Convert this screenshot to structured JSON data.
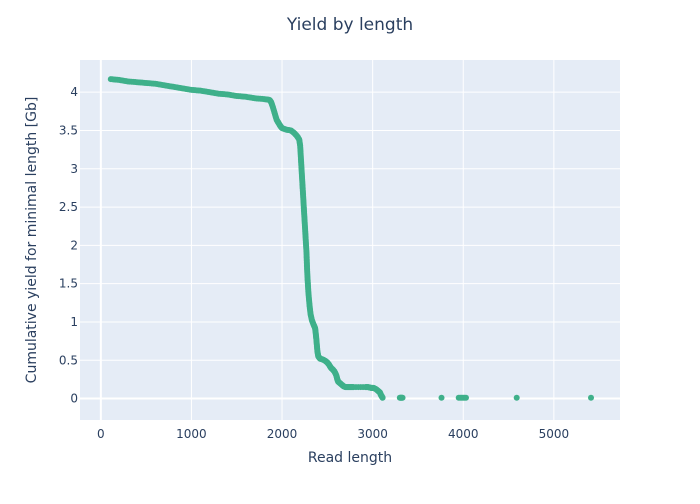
{
  "chart_data": {
    "type": "scatter",
    "title": "Yield by length",
    "xlabel": "Read length",
    "ylabel": "Cumulative yield for minimal length [Gb]",
    "xlim": [
      -230,
      5730
    ],
    "ylim": [
      -0.28,
      4.42
    ],
    "xticks": [
      0,
      1000,
      2000,
      3000,
      4000,
      5000
    ],
    "xtick_labels": [
      "0",
      "1000",
      "2000",
      "3000",
      "4000",
      "5000"
    ],
    "yticks": [
      0,
      0.5,
      1,
      1.5,
      2,
      2.5,
      3,
      3.5,
      4
    ],
    "ytick_labels": [
      "0",
      "0.5",
      "1",
      "1.5",
      "2",
      "2.5",
      "3",
      "3.5",
      "4"
    ],
    "grid": true,
    "legend": "none",
    "marker_color": "#3fb08a",
    "plot_bg": "#e5ecf6",
    "series": [
      {
        "values_xy": [
          [
            110,
            4.17
          ],
          [
            200,
            4.16
          ],
          [
            300,
            4.14
          ],
          [
            400,
            4.13
          ],
          [
            500,
            4.12
          ],
          [
            600,
            4.11
          ],
          [
            700,
            4.09
          ],
          [
            800,
            4.07
          ],
          [
            900,
            4.05
          ],
          [
            1000,
            4.03
          ],
          [
            1100,
            4.02
          ],
          [
            1200,
            4.0
          ],
          [
            1300,
            3.98
          ],
          [
            1400,
            3.97
          ],
          [
            1500,
            3.95
          ],
          [
            1600,
            3.94
          ],
          [
            1700,
            3.92
          ],
          [
            1800,
            3.91
          ],
          [
            1860,
            3.9
          ],
          [
            1880,
            3.87
          ],
          [
            1900,
            3.8
          ],
          [
            1920,
            3.72
          ],
          [
            1940,
            3.64
          ],
          [
            1960,
            3.6
          ],
          [
            1980,
            3.56
          ],
          [
            2000,
            3.53
          ],
          [
            2050,
            3.51
          ],
          [
            2100,
            3.5
          ],
          [
            2140,
            3.46
          ],
          [
            2170,
            3.42
          ],
          [
            2190,
            3.38
          ],
          [
            2200,
            3.3
          ],
          [
            2205,
            3.2
          ],
          [
            2210,
            3.1
          ],
          [
            2215,
            3.0
          ],
          [
            2220,
            2.9
          ],
          [
            2225,
            2.8
          ],
          [
            2230,
            2.7
          ],
          [
            2235,
            2.6
          ],
          [
            2240,
            2.5
          ],
          [
            2245,
            2.4
          ],
          [
            2250,
            2.3
          ],
          [
            2255,
            2.2
          ],
          [
            2260,
            2.1
          ],
          [
            2265,
            2.0
          ],
          [
            2270,
            1.9
          ],
          [
            2273,
            1.8
          ],
          [
            2276,
            1.7
          ],
          [
            2280,
            1.6
          ],
          [
            2285,
            1.5
          ],
          [
            2290,
            1.4
          ],
          [
            2297,
            1.3
          ],
          [
            2305,
            1.2
          ],
          [
            2315,
            1.1
          ],
          [
            2330,
            1.02
          ],
          [
            2350,
            0.96
          ],
          [
            2365,
            0.92
          ],
          [
            2372,
            0.85
          ],
          [
            2378,
            0.78
          ],
          [
            2384,
            0.7
          ],
          [
            2390,
            0.62
          ],
          [
            2400,
            0.55
          ],
          [
            2420,
            0.52
          ],
          [
            2450,
            0.51
          ],
          [
            2480,
            0.49
          ],
          [
            2500,
            0.47
          ],
          [
            2520,
            0.44
          ],
          [
            2540,
            0.4
          ],
          [
            2560,
            0.38
          ],
          [
            2580,
            0.35
          ],
          [
            2600,
            0.3
          ],
          [
            2610,
            0.25
          ],
          [
            2620,
            0.22
          ],
          [
            2640,
            0.2
          ],
          [
            2660,
            0.18
          ],
          [
            2680,
            0.16
          ],
          [
            2700,
            0.15
          ],
          [
            2730,
            0.15
          ],
          [
            2760,
            0.15
          ],
          [
            2790,
            0.15
          ],
          [
            2920,
            0.15
          ],
          [
            2950,
            0.15
          ],
          [
            2980,
            0.14
          ],
          [
            3010,
            0.14
          ],
          [
            3040,
            0.12
          ],
          [
            3060,
            0.1
          ],
          [
            3080,
            0.08
          ],
          [
            3090,
            0.05
          ],
          [
            3100,
            0.03
          ],
          [
            3110,
            0.01
          ],
          [
            3300,
            0.01
          ],
          [
            3330,
            0.01
          ],
          [
            3760,
            0.01
          ],
          [
            3950,
            0.01
          ],
          [
            4030,
            0.01
          ],
          [
            4590,
            0.01
          ],
          [
            5410,
            0.01
          ]
        ]
      }
    ]
  }
}
